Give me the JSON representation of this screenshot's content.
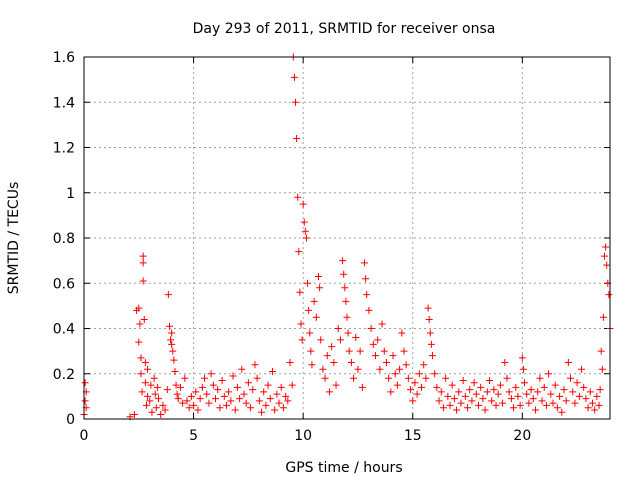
{
  "chart_data": {
    "type": "scatter",
    "title": "Day 293 of 2011, SRMTID for receiver onsa",
    "xlabel": "GPS time / hours",
    "ylabel": "SRMTID / TECUs",
    "xlim": [
      0,
      24
    ],
    "ylim": [
      0,
      1.6
    ],
    "xticks": [
      0,
      5,
      10,
      15,
      20
    ],
    "xtick_labels": [
      "0",
      "5",
      "10",
      "15",
      "20"
    ],
    "yticks": [
      0,
      0.2,
      0.4,
      0.6,
      0.8,
      1.0,
      1.2,
      1.4,
      1.6
    ],
    "ytick_labels": [
      "0",
      "0.2",
      "0.4",
      "0.6",
      "0.8",
      "1",
      "1.2",
      "1.4",
      "1.6"
    ],
    "grid": true,
    "marker": "plus",
    "color": "#ff0000",
    "series": [
      {
        "points": [
          [
            0.0,
            0.02
          ],
          [
            0.05,
            0.16
          ],
          [
            0.05,
            0.08
          ],
          [
            0.1,
            0.12
          ],
          [
            0.1,
            0.05
          ],
          [
            2.1,
            0.01
          ],
          [
            2.3,
            0.02
          ],
          [
            2.4,
            0.48
          ],
          [
            2.5,
            0.34
          ],
          [
            2.5,
            0.49
          ],
          [
            2.55,
            0.42
          ],
          [
            2.6,
            0.2
          ],
          [
            2.6,
            0.27
          ],
          [
            2.65,
            0.12
          ],
          [
            2.7,
            0.72
          ],
          [
            2.7,
            0.69
          ],
          [
            2.7,
            0.61
          ],
          [
            2.75,
            0.44
          ],
          [
            2.8,
            0.16
          ],
          [
            2.8,
            0.25
          ],
          [
            2.85,
            0.06
          ],
          [
            2.9,
            0.1
          ],
          [
            2.9,
            0.22
          ],
          [
            3.0,
            0.08
          ],
          [
            3.05,
            0.15
          ],
          [
            3.1,
            0.03
          ],
          [
            3.2,
            0.18
          ],
          [
            3.25,
            0.11
          ],
          [
            3.3,
            0.05
          ],
          [
            3.35,
            0.14
          ],
          [
            3.4,
            0.09
          ],
          [
            3.5,
            0.02
          ],
          [
            3.6,
            0.06
          ],
          [
            3.7,
            0.04
          ],
          [
            3.8,
            0.13
          ],
          [
            3.85,
            0.55
          ],
          [
            3.9,
            0.41
          ],
          [
            3.95,
            0.35
          ],
          [
            4.0,
            0.38
          ],
          [
            4.0,
            0.33
          ],
          [
            4.05,
            0.3
          ],
          [
            4.1,
            0.26
          ],
          [
            4.15,
            0.21
          ],
          [
            4.2,
            0.15
          ],
          [
            4.25,
            0.11
          ],
          [
            4.3,
            0.09
          ],
          [
            4.4,
            0.14
          ],
          [
            4.5,
            0.07
          ],
          [
            4.6,
            0.18
          ],
          [
            4.7,
            0.08
          ],
          [
            4.8,
            0.05
          ],
          [
            4.9,
            0.1
          ],
          [
            5.0,
            0.06
          ],
          [
            5.1,
            0.12
          ],
          [
            5.2,
            0.04
          ],
          [
            5.3,
            0.09
          ],
          [
            5.4,
            0.14
          ],
          [
            5.5,
            0.18
          ],
          [
            5.6,
            0.11
          ],
          [
            5.7,
            0.07
          ],
          [
            5.8,
            0.2
          ],
          [
            5.9,
            0.15
          ],
          [
            6.0,
            0.09
          ],
          [
            6.1,
            0.13
          ],
          [
            6.2,
            0.05
          ],
          [
            6.3,
            0.17
          ],
          [
            6.4,
            0.1
          ],
          [
            6.5,
            0.06
          ],
          [
            6.6,
            0.12
          ],
          [
            6.7,
            0.08
          ],
          [
            6.8,
            0.19
          ],
          [
            6.9,
            0.04
          ],
          [
            7.0,
            0.14
          ],
          [
            7.1,
            0.09
          ],
          [
            7.2,
            0.22
          ],
          [
            7.3,
            0.11
          ],
          [
            7.4,
            0.07
          ],
          [
            7.5,
            0.16
          ],
          [
            7.6,
            0.05
          ],
          [
            7.7,
            0.13
          ],
          [
            7.8,
            0.24
          ],
          [
            7.9,
            0.18
          ],
          [
            8.0,
            0.08
          ],
          [
            8.1,
            0.03
          ],
          [
            8.2,
            0.12
          ],
          [
            8.3,
            0.06
          ],
          [
            8.4,
            0.15
          ],
          [
            8.5,
            0.09
          ],
          [
            8.6,
            0.21
          ],
          [
            8.7,
            0.04
          ],
          [
            8.8,
            0.11
          ],
          [
            8.9,
            0.07
          ],
          [
            9.0,
            0.14
          ],
          [
            9.1,
            0.05
          ],
          [
            9.2,
            0.1
          ],
          [
            9.3,
            0.08
          ],
          [
            9.4,
            0.25
          ],
          [
            9.5,
            0.15
          ],
          [
            9.55,
            1.6
          ],
          [
            9.6,
            1.51
          ],
          [
            9.65,
            1.4
          ],
          [
            9.7,
            1.24
          ],
          [
            9.75,
            0.98
          ],
          [
            9.8,
            0.74
          ],
          [
            9.85,
            0.56
          ],
          [
            9.9,
            0.42
          ],
          [
            9.95,
            0.35
          ],
          [
            10.0,
            0.95
          ],
          [
            10.05,
            0.87
          ],
          [
            10.1,
            0.83
          ],
          [
            10.15,
            0.8
          ],
          [
            10.2,
            0.6
          ],
          [
            10.25,
            0.48
          ],
          [
            10.3,
            0.38
          ],
          [
            10.35,
            0.3
          ],
          [
            10.4,
            0.24
          ],
          [
            10.5,
            0.52
          ],
          [
            10.6,
            0.45
          ],
          [
            10.7,
            0.63
          ],
          [
            10.75,
            0.58
          ],
          [
            10.8,
            0.35
          ],
          [
            10.9,
            0.22
          ],
          [
            11.0,
            0.18
          ],
          [
            11.1,
            0.28
          ],
          [
            11.2,
            0.12
          ],
          [
            11.3,
            0.32
          ],
          [
            11.4,
            0.25
          ],
          [
            11.5,
            0.15
          ],
          [
            11.6,
            0.4
          ],
          [
            11.7,
            0.35
          ],
          [
            11.8,
            0.7
          ],
          [
            11.85,
            0.64
          ],
          [
            11.9,
            0.58
          ],
          [
            11.95,
            0.52
          ],
          [
            12.0,
            0.45
          ],
          [
            12.05,
            0.38
          ],
          [
            12.1,
            0.3
          ],
          [
            12.2,
            0.25
          ],
          [
            12.3,
            0.18
          ],
          [
            12.4,
            0.36
          ],
          [
            12.5,
            0.22
          ],
          [
            12.6,
            0.3
          ],
          [
            12.7,
            0.14
          ],
          [
            12.8,
            0.69
          ],
          [
            12.85,
            0.62
          ],
          [
            12.9,
            0.55
          ],
          [
            13.0,
            0.48
          ],
          [
            13.1,
            0.4
          ],
          [
            13.2,
            0.33
          ],
          [
            13.3,
            0.28
          ],
          [
            13.4,
            0.35
          ],
          [
            13.5,
            0.22
          ],
          [
            13.6,
            0.42
          ],
          [
            13.7,
            0.3
          ],
          [
            13.8,
            0.25
          ],
          [
            13.9,
            0.18
          ],
          [
            14.0,
            0.12
          ],
          [
            14.1,
            0.28
          ],
          [
            14.2,
            0.2
          ],
          [
            14.3,
            0.15
          ],
          [
            14.4,
            0.22
          ],
          [
            14.5,
            0.38
          ],
          [
            14.6,
            0.3
          ],
          [
            14.7,
            0.24
          ],
          [
            14.8,
            0.18
          ],
          [
            14.9,
            0.13
          ],
          [
            15.0,
            0.08
          ],
          [
            15.1,
            0.16
          ],
          [
            15.2,
            0.11
          ],
          [
            15.3,
            0.2
          ],
          [
            15.4,
            0.14
          ],
          [
            15.5,
            0.24
          ],
          [
            15.6,
            0.18
          ],
          [
            15.7,
            0.49
          ],
          [
            15.75,
            0.44
          ],
          [
            15.8,
            0.38
          ],
          [
            15.85,
            0.33
          ],
          [
            15.9,
            0.28
          ],
          [
            16.0,
            0.2
          ],
          [
            16.1,
            0.14
          ],
          [
            16.2,
            0.08
          ],
          [
            16.3,
            0.12
          ],
          [
            16.4,
            0.05
          ],
          [
            16.5,
            0.18
          ],
          [
            16.6,
            0.1
          ],
          [
            16.7,
            0.06
          ],
          [
            16.8,
            0.15
          ],
          [
            16.9,
            0.09
          ],
          [
            17.0,
            0.04
          ],
          [
            17.1,
            0.12
          ],
          [
            17.2,
            0.07
          ],
          [
            17.3,
            0.17
          ],
          [
            17.4,
            0.1
          ],
          [
            17.5,
            0.05
          ],
          [
            17.6,
            0.13
          ],
          [
            17.7,
            0.08
          ],
          [
            17.8,
            0.16
          ],
          [
            17.9,
            0.11
          ],
          [
            18.0,
            0.06
          ],
          [
            18.1,
            0.14
          ],
          [
            18.2,
            0.09
          ],
          [
            18.3,
            0.04
          ],
          [
            18.4,
            0.12
          ],
          [
            18.5,
            0.17
          ],
          [
            18.6,
            0.08
          ],
          [
            18.7,
            0.13
          ],
          [
            18.8,
            0.06
          ],
          [
            18.9,
            0.11
          ],
          [
            19.0,
            0.15
          ],
          [
            19.1,
            0.07
          ],
          [
            19.2,
            0.25
          ],
          [
            19.3,
            0.18
          ],
          [
            19.4,
            0.12
          ],
          [
            19.5,
            0.09
          ],
          [
            19.6,
            0.05
          ],
          [
            19.7,
            0.14
          ],
          [
            19.8,
            0.1
          ],
          [
            19.9,
            0.06
          ],
          [
            20.0,
            0.27
          ],
          [
            20.05,
            0.22
          ],
          [
            20.1,
            0.16
          ],
          [
            20.2,
            0.11
          ],
          [
            20.3,
            0.07
          ],
          [
            20.4,
            0.13
          ],
          [
            20.5,
            0.09
          ],
          [
            20.6,
            0.04
          ],
          [
            20.7,
            0.12
          ],
          [
            20.8,
            0.18
          ],
          [
            20.9,
            0.08
          ],
          [
            21.0,
            0.14
          ],
          [
            21.1,
            0.06
          ],
          [
            21.2,
            0.2
          ],
          [
            21.3,
            0.11
          ],
          [
            21.4,
            0.07
          ],
          [
            21.5,
            0.15
          ],
          [
            21.6,
            0.05
          ],
          [
            21.7,
            0.1
          ],
          [
            21.8,
            0.03
          ],
          [
            21.9,
            0.13
          ],
          [
            22.0,
            0.08
          ],
          [
            22.1,
            0.25
          ],
          [
            22.2,
            0.18
          ],
          [
            22.3,
            0.12
          ],
          [
            22.4,
            0.07
          ],
          [
            22.5,
            0.16
          ],
          [
            22.6,
            0.1
          ],
          [
            22.7,
            0.22
          ],
          [
            22.8,
            0.14
          ],
          [
            22.9,
            0.09
          ],
          [
            23.0,
            0.05
          ],
          [
            23.1,
            0.12
          ],
          [
            23.2,
            0.07
          ],
          [
            23.3,
            0.04
          ],
          [
            23.4,
            0.1
          ],
          [
            23.5,
            0.06
          ],
          [
            23.55,
            0.13
          ],
          [
            23.6,
            0.3
          ],
          [
            23.65,
            0.22
          ],
          [
            23.7,
            0.45
          ],
          [
            23.75,
            0.72
          ],
          [
            23.8,
            0.76
          ],
          [
            23.85,
            0.68
          ],
          [
            23.9,
            0.6
          ],
          [
            23.95,
            0.55
          ],
          [
            24.0,
            0.4
          ]
        ]
      }
    ]
  }
}
